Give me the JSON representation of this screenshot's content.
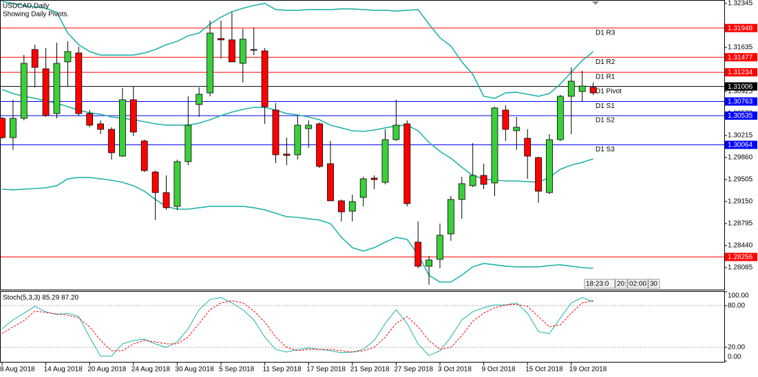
{
  "chart_data": [
    {
      "type": "candlestick",
      "title": "USDCAD,Daily",
      "subtitle": "Showing Daily Pivots.",
      "categories": [
        "8 Aug 2018",
        null,
        null,
        null,
        "14 Aug 2018",
        null,
        null,
        null,
        "20 Aug 2018",
        null,
        null,
        null,
        "24 Aug 2018",
        null,
        null,
        null,
        "30 Aug 2018",
        null,
        null,
        null,
        "5 Sep 2018",
        null,
        null,
        null,
        "11 Sep 2018",
        null,
        null,
        null,
        "17 Sep 2018",
        null,
        null,
        null,
        "21 Sep 2018",
        null,
        null,
        null,
        "27 Sep 2018",
        null,
        null,
        null,
        "3 Oct 2018",
        null,
        null,
        null,
        "9 Oct 2018",
        null,
        null,
        null,
        "15 Oct 2018",
        null,
        null,
        null,
        "19 Oct 2018",
        null,
        null
      ],
      "open": [
        1.30492,
        1.30181,
        1.30492,
        1.31601,
        1.31291,
        1.30569,
        1.31402,
        1.31546,
        1.30569,
        1.30403,
        1.30314,
        1.29882,
        1.30791,
        1.30126,
        1.29626,
        1.29294,
        1.29072,
        1.29793,
        1.30714,
        1.30902,
        1.31779,
        1.31757,
        1.31379,
        1.31601,
        1.31579,
        1.30625,
        1.29915,
        1.29904,
        1.30325,
        1.30403,
        1.2976,
        1.29161,
        1.28994,
        1.29216,
        1.29527,
        1.2946,
        1.30148,
        1.30403,
        1.28495,
        1.28107,
        1.28218,
        1.28628,
        1.29183,
        1.29405,
        1.29571,
        1.29449,
        1.30625,
        1.30292,
        1.3017,
        1.29859,
        1.29294,
        1.30148,
        1.30847,
        1.30924,
        1.30991
      ],
      "high": [
        1.30514,
        1.30791,
        1.31512,
        1.31679,
        1.31623,
        1.31712,
        1.31734,
        1.31646,
        1.30625,
        1.30459,
        1.30348,
        1.3098,
        1.31013,
        1.30148,
        1.29649,
        1.29571,
        1.29826,
        1.30847,
        1.30991,
        1.32067,
        1.32067,
        1.322,
        1.31934,
        1.31956,
        1.31623,
        1.30736,
        1.30181,
        1.30536,
        1.30459,
        1.30425,
        1.30126,
        1.29183,
        1.2926,
        1.29549,
        1.29571,
        1.30314,
        1.30791,
        1.30459,
        1.28828,
        1.28273,
        1.28794,
        1.29238,
        1.29549,
        1.30092,
        1.2976,
        1.3068,
        1.30703,
        1.30514,
        1.30314,
        1.29871,
        1.30237,
        1.30869,
        1.31313,
        1.31257,
        1.31069
      ],
      "low": [
        1.30159,
        1.29982,
        1.30459,
        1.30991,
        1.30514,
        1.30492,
        1.31013,
        1.30536,
        1.30348,
        1.30237,
        1.29826,
        1.29871,
        1.30203,
        1.29626,
        1.2885,
        1.29016,
        1.29016,
        1.29737,
        1.30514,
        1.30847,
        1.31457,
        1.31402,
        1.31069,
        1.31512,
        1.30403,
        1.29771,
        1.29737,
        1.29826,
        1.30015,
        1.29693,
        1.29161,
        1.28828,
        1.28828,
        1.29072,
        1.29349,
        1.29427,
        1.30126,
        1.29072,
        1.28073,
        1.27807,
        1.28073,
        1.28517,
        1.28872,
        1.29382,
        1.29349,
        1.29238,
        1.30126,
        1.29982,
        1.29516,
        1.29127,
        1.29271,
        1.30126,
        1.30237,
        1.30758,
        1.30869
      ],
      "close": [
        1.30181,
        1.30492,
        1.31379,
        1.31313,
        1.30536,
        1.31379,
        1.31568,
        1.30569,
        1.30381,
        1.30314,
        1.29937,
        1.30791,
        1.3027,
        1.29649,
        1.29294,
        1.2905,
        1.29793,
        1.30381,
        1.3088,
        1.31867,
        1.31757,
        1.31402,
        1.31768,
        1.3159,
        1.3068,
        1.29904,
        1.29893,
        1.30381,
        1.30381,
        1.29715,
        1.29161,
        1.28983,
        1.29149,
        1.29516,
        1.29504,
        1.30148,
        1.30381,
        1.29116,
        1.28107,
        1.28207,
        1.28606,
        1.29183,
        1.29438,
        1.29571,
        1.29427,
        1.30658,
        1.30314,
        1.30348,
        1.29882,
        1.29316,
        1.30148,
        1.30847,
        1.31091,
        1.31013,
        1.30902
      ],
      "up_color": "#3ccf3c",
      "down_color": "#ff0000",
      "ylim": [
        1.27729,
        1.324
      ],
      "yticks": [
        1.32345,
        1.31635,
        1.30925,
        {
          "value": 1.3057,
          "label": "1.30570"
        },
        1.30215,
        {
          "value": 1.2986,
          "label": "1.29860"
        },
        1.29505,
        {
          "value": 1.2915,
          "label": "1.29150"
        },
        1.28795,
        {
          "value": 1.2844,
          "label": "1.28440"
        },
        1.28085
      ],
      "bands": {
        "color": "#20b2aa",
        "upper": [
          1.32378,
          1.32345,
          1.32311,
          1.32289,
          1.32267,
          1.322,
          1.31867,
          1.31679,
          1.31568,
          1.31512,
          1.31512,
          1.31512,
          1.31512,
          1.31546,
          1.31601,
          1.31679,
          1.31734,
          1.31823,
          1.31867,
          1.32012,
          1.32123,
          1.32211,
          1.32267,
          1.32311,
          1.32345,
          1.32245,
          1.32234,
          1.32234,
          1.32245,
          1.32245,
          1.32245,
          1.32256,
          1.32256,
          1.32245,
          1.32234,
          1.32234,
          1.32222,
          1.32234,
          1.32245,
          1.32012,
          1.3179,
          1.31657,
          1.31402,
          1.31202,
          1.30847,
          1.30814,
          1.30902,
          1.30913,
          1.3088,
          1.30847,
          1.30891,
          1.31047,
          1.31235,
          1.31424,
          1.31568
        ],
        "middle": [
          1.30958,
          1.30891,
          1.30847,
          1.30814,
          1.30769,
          1.30736,
          1.3068,
          1.30625,
          1.30581,
          1.30558,
          1.30514,
          1.30492,
          1.3047,
          1.30436,
          1.30403,
          1.30381,
          1.30381,
          1.30381,
          1.30414,
          1.3047,
          1.30536,
          1.30592,
          1.30636,
          1.30669,
          1.30669,
          1.30625,
          1.30569,
          1.30547,
          1.30514,
          1.3047,
          1.30381,
          1.30337,
          1.30292,
          1.30281,
          1.30303,
          1.30337,
          1.3037,
          1.30381,
          1.30292,
          1.30104,
          1.29959,
          1.29848,
          1.29704,
          1.29571,
          1.29516,
          1.29493,
          1.29482,
          1.29482,
          1.29471,
          1.2946,
          1.29538,
          1.29671,
          1.29737,
          1.29782,
          1.29837
        ],
        "lower": [
          1.29349,
          1.29338,
          1.29349,
          1.2936,
          1.29371,
          1.29405,
          1.29516,
          1.29538,
          1.29538,
          1.29516,
          1.29493,
          1.2946,
          1.29405,
          1.29316,
          1.29183,
          1.29072,
          1.29027,
          1.29027,
          1.2905,
          1.29072,
          1.29072,
          1.29072,
          1.29072,
          1.2905,
          1.29016,
          1.28961,
          1.28905,
          1.28894,
          1.28872,
          1.2885,
          1.28794,
          1.28573,
          1.28406,
          1.28351,
          1.28406,
          1.28495,
          1.28573,
          1.28539,
          1.28295,
          1.27962,
          1.27851,
          1.27851,
          1.27962,
          1.28096,
          1.28151,
          1.28129,
          1.28107,
          1.28096,
          1.28096,
          1.28096,
          1.28118,
          1.28129,
          1.28107,
          1.28084,
          1.28073
        ]
      },
      "levels": [
        {
          "name": "D1 R3",
          "value": 1.31948,
          "color": "#ff0000"
        },
        {
          "name": "D1 R2",
          "value": 1.31477,
          "color": "#ff0000"
        },
        {
          "name": "D1 R1",
          "value": 1.31234,
          "color": "#ff0000"
        },
        {
          "name": "D1 Pivot",
          "value": 1.31006,
          "color": "#000000"
        },
        {
          "name": "D1 S1",
          "value": 1.30763,
          "color": "#0000ff"
        },
        {
          "name": "D1 S2",
          "value": 1.30535,
          "color": "#0000ff"
        },
        {
          "name": "D1 S3",
          "value": 1.30064,
          "color": "#0000ff"
        },
        {
          "value": 1.28256,
          "color": "#ff0000"
        }
      ],
      "timer": [
        "18:23:0",
        "20:",
        "02:00",
        "30"
      ]
    },
    {
      "type": "line",
      "title": "Stoch(5,3,3) 85.29 87.20",
      "ylim": [
        0,
        100
      ],
      "yticks": [
        {
          "value": 100,
          "label": "100.00"
        },
        {
          "value": 80,
          "label": "80.00"
        },
        {
          "value": 20,
          "label": "20.00"
        },
        {
          "value": 0,
          "label": "0.00"
        }
      ],
      "series": [
        {
          "color": "#20b2aa",
          "line_style": "solid",
          "values": [
            46.5,
            59.3,
            69.1,
            78.9,
            71.1,
            67.2,
            69.1,
            64.2,
            34.7,
            7.2,
            7.2,
            24.9,
            29.8,
            31.7,
            24.9,
            19.9,
            27.8,
            46.5,
            74.0,
            88.8,
            91.7,
            83.9,
            74.0,
            59.3,
            34.7,
            17.0,
            13.1,
            17.0,
            19.0,
            17.0,
            15.0,
            12.1,
            13.1,
            17.0,
            29.8,
            54.4,
            74.0,
            54.4,
            24.9,
            8.1,
            15.0,
            34.7,
            59.3,
            71.1,
            77.0,
            80.9,
            80.9,
            83.9,
            69.1,
            42.6,
            39.7,
            62.2,
            83.9,
            91.7,
            85.29
          ]
        },
        {
          "color": "#ff0000",
          "line_style": "dashed",
          "values": [
            39.7,
            49.5,
            58.3,
            72.1,
            70.1,
            68.1,
            66.2,
            62.2,
            49.5,
            29.8,
            15.0,
            15.0,
            24.9,
            29.8,
            27.8,
            24.9,
            24.9,
            34.7,
            54.4,
            74.0,
            83.9,
            86.8,
            83.9,
            72.1,
            56.3,
            34.7,
            19.9,
            15.0,
            17.0,
            17.0,
            17.0,
            15.0,
            13.1,
            15.0,
            19.9,
            34.7,
            54.4,
            64.2,
            49.5,
            29.8,
            17.0,
            19.9,
            36.7,
            57.3,
            69.1,
            77.0,
            80.9,
            81.9,
            78.9,
            64.2,
            49.5,
            52.4,
            69.1,
            83.9,
            87.2
          ]
        }
      ]
    }
  ]
}
